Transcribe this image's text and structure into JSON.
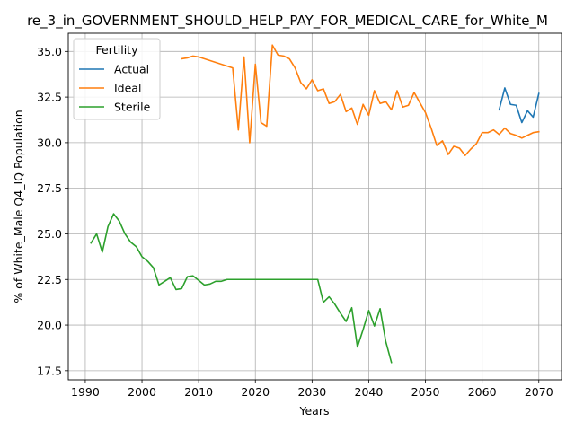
{
  "chart_data": {
    "type": "line",
    "title": "re_3_in_GOVERNMENT_SHOULD_HELP_PAY_FOR_MEDICAL_CARE_for_White_M",
    "xlabel": "Years",
    "ylabel": "% of White_Male Q4_IQ Population",
    "xlim": [
      1987,
      2074
    ],
    "ylim": [
      17.0,
      36.0
    ],
    "xticks": [
      1990,
      2000,
      2010,
      2020,
      2030,
      2040,
      2050,
      2060,
      2070
    ],
    "yticks": [
      17.5,
      20.0,
      22.5,
      25.0,
      27.5,
      30.0,
      32.5,
      35.0
    ],
    "xtick_labels": [
      "1990",
      "2000",
      "2010",
      "2020",
      "2030",
      "2040",
      "2050",
      "2060",
      "2070"
    ],
    "ytick_labels": [
      "17.5",
      "20.0",
      "22.5",
      "25.0",
      "27.5",
      "30.0",
      "32.5",
      "35.0"
    ],
    "grid": true,
    "legend": {
      "title": "Fertility",
      "position": "upper-left"
    },
    "series": [
      {
        "name": "Actual",
        "color": "#1f77b4",
        "x": [
          2063,
          2064,
          2065,
          2066,
          2067,
          2068,
          2069,
          2070
        ],
        "y": [
          31.8,
          33.0,
          32.1,
          32.05,
          31.1,
          31.75,
          31.4,
          32.7
        ]
      },
      {
        "name": "Ideal",
        "color": "#ff7f0e",
        "x": [
          2007,
          2008,
          2009,
          2010,
          2016,
          2017,
          2018,
          2019,
          2020,
          2021,
          2022,
          2023,
          2024,
          2025,
          2026,
          2027,
          2028,
          2029,
          2030,
          2031,
          2032,
          2033,
          2034,
          2035,
          2036,
          2037,
          2038,
          2039,
          2040,
          2041,
          2042,
          2043,
          2044,
          2045,
          2046,
          2047,
          2048,
          2049,
          2050,
          2051,
          2052,
          2053,
          2054,
          2055,
          2056,
          2057,
          2058,
          2059,
          2060,
          2061,
          2062,
          2063,
          2064,
          2065,
          2066,
          2067,
          2068,
          2069,
          2070
        ],
        "y": [
          34.6,
          34.65,
          34.75,
          34.7,
          34.1,
          30.7,
          34.7,
          30.0,
          34.3,
          31.1,
          30.9,
          35.35,
          34.8,
          34.75,
          34.6,
          34.1,
          33.3,
          32.95,
          33.45,
          32.85,
          32.95,
          32.15,
          32.25,
          32.65,
          31.7,
          31.9,
          31.0,
          32.1,
          31.5,
          32.85,
          32.15,
          32.25,
          31.8,
          32.85,
          31.95,
          32.05,
          32.75,
          32.2,
          31.65,
          30.8,
          29.85,
          30.1,
          29.35,
          29.8,
          29.7,
          29.3,
          29.65,
          29.95,
          30.55,
          30.55,
          30.7,
          30.45,
          30.8,
          30.5,
          30.4,
          30.25,
          30.4,
          30.55,
          30.6
        ]
      },
      {
        "name": "Sterile",
        "color": "#2ca02c",
        "x": [
          1991,
          1992,
          1993,
          1994,
          1995,
          1996,
          1997,
          1998,
          1999,
          2000,
          2001,
          2002,
          2003,
          2004,
          2005,
          2006,
          2007,
          2008,
          2009,
          2010,
          2011,
          2012,
          2013,
          2014,
          2015,
          2016,
          2017,
          2018,
          2019,
          2020,
          2021,
          2022,
          2023,
          2024,
          2025,
          2026,
          2027,
          2028,
          2029,
          2030,
          2031,
          2032,
          2033,
          2034,
          2035,
          2036,
          2037,
          2038,
          2039,
          2040,
          2041,
          2042,
          2043,
          2044
        ],
        "y": [
          24.5,
          25.0,
          24.0,
          25.4,
          26.1,
          25.7,
          25.0,
          24.55,
          24.3,
          23.75,
          23.5,
          23.15,
          22.2,
          22.4,
          22.6,
          21.95,
          22.0,
          22.65,
          22.7,
          22.45,
          22.2,
          22.25,
          22.4,
          22.4,
          22.5,
          22.5,
          22.5,
          22.5,
          22.5,
          22.5,
          22.5,
          22.5,
          22.5,
          22.5,
          22.5,
          22.5,
          22.5,
          22.5,
          22.5,
          22.5,
          22.5,
          21.25,
          21.55,
          21.15,
          20.65,
          20.2,
          20.95,
          18.8,
          19.75,
          20.8,
          19.95,
          20.9,
          19.1,
          17.95
        ]
      }
    ]
  }
}
